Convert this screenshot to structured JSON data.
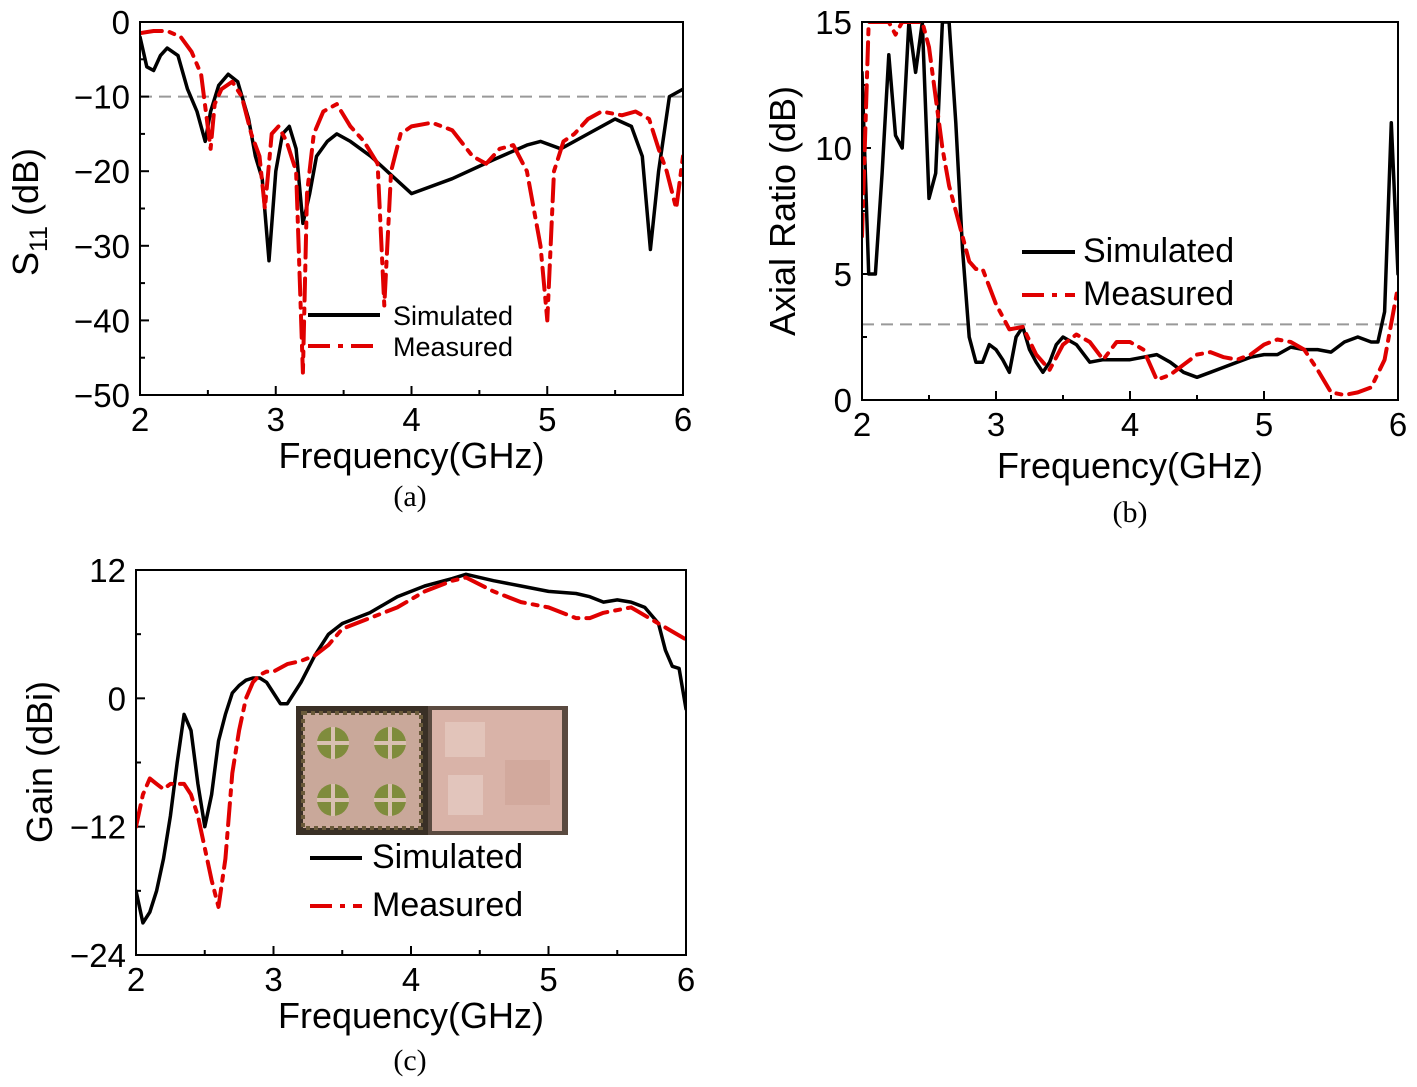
{
  "chart_data": [
    {
      "panel_label": "(a)",
      "type": "line",
      "xlabel": "Frequency(GHz)",
      "ylabel": "S11 (dB)",
      "ylabel_main": "S",
      "ylabel_sub": "11",
      "ylabel_unit": " (dB)",
      "xlim": [
        2,
        6
      ],
      "ylim": [
        -50,
        0
      ],
      "xticks": [
        2,
        3,
        4,
        5,
        6
      ],
      "yticks": [
        0,
        -10,
        -20,
        -30,
        -40,
        -50
      ],
      "xtick_labels": [
        "2",
        "3",
        "4",
        "5",
        "6"
      ],
      "ytick_labels": [
        "0",
        "−10",
        "−20",
        "−30",
        "−40",
        "−50"
      ],
      "reference_line": {
        "y": -10,
        "style": "dashed",
        "color": "#999999"
      },
      "legend_position": "bottom-center",
      "series": [
        {
          "name": "Simulated",
          "color": "#000000",
          "style": "solid",
          "x": [
            2.0,
            2.05,
            2.1,
            2.15,
            2.2,
            2.28,
            2.35,
            2.42,
            2.48,
            2.52,
            2.58,
            2.65,
            2.72,
            2.8,
            2.85,
            2.9,
            2.95,
            3.0,
            3.05,
            3.1,
            3.15,
            3.2,
            3.25,
            3.3,
            3.38,
            3.45,
            3.55,
            3.7,
            3.85,
            4.0,
            4.3,
            4.6,
            4.85,
            4.95,
            5.1,
            5.3,
            5.5,
            5.62,
            5.7,
            5.76,
            5.82,
            5.9,
            6.0
          ],
          "y": [
            -2,
            -6,
            -6.5,
            -4.5,
            -3.5,
            -4.5,
            -9,
            -12,
            -16,
            -12,
            -8.5,
            -7,
            -8,
            -13,
            -18,
            -21,
            -32,
            -20,
            -15,
            -14,
            -17,
            -27,
            -23,
            -18,
            -16,
            -15,
            -16,
            -18,
            -20.5,
            -23,
            -21,
            -18.5,
            -16.5,
            -16,
            -17,
            -15,
            -13,
            -14,
            -18,
            -30.5,
            -20,
            -10,
            -9
          ]
        },
        {
          "name": "Measured",
          "color": "#e00000",
          "style": "dashdot",
          "x": [
            2.0,
            2.1,
            2.2,
            2.3,
            2.38,
            2.45,
            2.52,
            2.55,
            2.6,
            2.68,
            2.75,
            2.82,
            2.88,
            2.92,
            2.97,
            3.02,
            3.08,
            3.15,
            3.2,
            3.23,
            3.28,
            3.35,
            3.45,
            3.55,
            3.65,
            3.75,
            3.8,
            3.85,
            3.92,
            4.0,
            4.15,
            4.3,
            4.45,
            4.55,
            4.65,
            4.75,
            4.85,
            4.95,
            5.0,
            5.05,
            5.12,
            5.2,
            5.3,
            5.4,
            5.55,
            5.65,
            5.75,
            5.82,
            5.88,
            5.95,
            6.0
          ],
          "y": [
            -1.5,
            -1.2,
            -1.2,
            -2,
            -4,
            -7,
            -17,
            -11,
            -9,
            -8,
            -10,
            -15,
            -18,
            -25,
            -15,
            -14,
            -16,
            -20,
            -47,
            -23,
            -15,
            -12,
            -11,
            -14,
            -16,
            -19,
            -38,
            -20,
            -15,
            -14,
            -13.5,
            -14.5,
            -18,
            -19,
            -17,
            -16.5,
            -20,
            -30,
            -40,
            -20,
            -16,
            -15,
            -13,
            -12,
            -12.5,
            -12,
            -13,
            -17,
            -20,
            -25,
            -18
          ]
        }
      ]
    },
    {
      "panel_label": "(b)",
      "type": "line",
      "xlabel": "Frequency(GHz)",
      "ylabel": "Axial Ratio (dB)",
      "xlim": [
        2,
        6
      ],
      "ylim": [
        0,
        15
      ],
      "xticks": [
        2,
        3,
        4,
        5,
        6
      ],
      "yticks": [
        0,
        5,
        10,
        15
      ],
      "xtick_labels": [
        "2",
        "3",
        "4",
        "5",
        "6"
      ],
      "ytick_labels": [
        "0",
        "5",
        "10",
        "15"
      ],
      "reference_line": {
        "y": 3,
        "style": "dashed",
        "color": "#999999"
      },
      "legend_position": "center-right",
      "series": [
        {
          "name": "Simulated",
          "color": "#000000",
          "style": "solid",
          "x": [
            2.0,
            2.05,
            2.1,
            2.15,
            2.2,
            2.25,
            2.3,
            2.35,
            2.4,
            2.45,
            2.5,
            2.55,
            2.6,
            2.65,
            2.7,
            2.75,
            2.8,
            2.85,
            2.9,
            2.95,
            3.0,
            3.05,
            3.1,
            3.15,
            3.2,
            3.25,
            3.3,
            3.35,
            3.4,
            3.45,
            3.5,
            3.6,
            3.7,
            3.8,
            3.9,
            4.0,
            4.1,
            4.2,
            4.3,
            4.4,
            4.5,
            4.6,
            4.7,
            4.8,
            4.9,
            5.0,
            5.1,
            5.2,
            5.3,
            5.4,
            5.5,
            5.6,
            5.7,
            5.8,
            5.85,
            5.9,
            5.95,
            6.0
          ],
          "y": [
            13,
            5,
            5,
            9,
            13.7,
            10.5,
            10,
            15,
            13,
            15,
            8,
            9,
            15,
            15,
            11,
            6,
            2.5,
            1.5,
            1.5,
            2.2,
            2,
            1.6,
            1.1,
            2.5,
            2.9,
            2,
            1.5,
            1.1,
            1.5,
            2.2,
            2.5,
            2.2,
            1.5,
            1.6,
            1.6,
            1.6,
            1.7,
            1.8,
            1.5,
            1.1,
            0.9,
            1.1,
            1.3,
            1.5,
            1.7,
            1.8,
            1.8,
            2.1,
            2,
            2,
            1.9,
            2.3,
            2.5,
            2.3,
            2.3,
            3.5,
            11,
            5
          ]
        },
        {
          "name": "Measured",
          "color": "#e00000",
          "style": "dashdot",
          "x": [
            2.0,
            2.05,
            2.1,
            2.15,
            2.2,
            2.25,
            2.3,
            2.35,
            2.4,
            2.45,
            2.5,
            2.55,
            2.6,
            2.65,
            2.7,
            2.75,
            2.8,
            2.85,
            2.9,
            2.95,
            3.0,
            3.1,
            3.2,
            3.3,
            3.4,
            3.5,
            3.6,
            3.7,
            3.8,
            3.9,
            4.0,
            4.1,
            4.2,
            4.3,
            4.4,
            4.5,
            4.6,
            4.7,
            4.8,
            4.9,
            5.0,
            5.1,
            5.2,
            5.3,
            5.4,
            5.5,
            5.6,
            5.7,
            5.8,
            5.9,
            6.0
          ],
          "y": [
            6.5,
            15,
            15,
            15,
            15,
            14.5,
            15,
            15,
            15,
            15,
            14,
            12,
            10,
            8.5,
            7.5,
            6.5,
            5.5,
            5.2,
            5.2,
            4.5,
            3.8,
            2.8,
            2.9,
            1.8,
            1.2,
            2.2,
            2.6,
            2.3,
            1.6,
            2.3,
            2.3,
            2.0,
            0.8,
            1.0,
            1.4,
            1.8,
            1.9,
            1.7,
            1.6,
            1.8,
            2.2,
            2.4,
            2.3,
            2.0,
            1.2,
            0.3,
            0.2,
            0.3,
            0.5,
            1.6,
            4.5
          ]
        }
      ]
    },
    {
      "panel_label": "(c)",
      "type": "line",
      "xlabel": "Frequency(GHz)",
      "ylabel": "Gain (dBi)",
      "xlim": [
        2,
        6
      ],
      "ylim": [
        -24,
        12
      ],
      "xticks": [
        2,
        3,
        4,
        5,
        6
      ],
      "yticks": [
        12,
        0,
        -12,
        -24
      ],
      "xtick_labels": [
        "2",
        "3",
        "4",
        "5",
        "6"
      ],
      "ytick_labels": [
        "12",
        "0",
        "−12",
        "−24"
      ],
      "legend_position": "bottom-center",
      "inset": "photograph of fabricated antenna (front and back)",
      "series": [
        {
          "name": "Simulated",
          "color": "#000000",
          "style": "solid",
          "x": [
            2.0,
            2.05,
            2.1,
            2.15,
            2.2,
            2.25,
            2.3,
            2.35,
            2.4,
            2.45,
            2.5,
            2.55,
            2.6,
            2.65,
            2.7,
            2.75,
            2.8,
            2.85,
            2.9,
            2.95,
            3.0,
            3.05,
            3.1,
            3.2,
            3.3,
            3.4,
            3.5,
            3.7,
            3.9,
            4.1,
            4.3,
            4.4,
            4.6,
            4.8,
            5.0,
            5.2,
            5.3,
            5.4,
            5.5,
            5.6,
            5.7,
            5.8,
            5.85,
            5.9,
            5.95,
            6.0
          ],
          "y": [
            -18,
            -21,
            -20,
            -18,
            -15,
            -11,
            -6,
            -1.5,
            -3,
            -8,
            -12,
            -9,
            -4,
            -1.5,
            0.5,
            1.2,
            1.7,
            1.9,
            1.9,
            1.5,
            0.5,
            -0.5,
            -0.5,
            1.5,
            4,
            6,
            7,
            8,
            9.5,
            10.5,
            11.2,
            11.6,
            11,
            10.5,
            10,
            9.8,
            9.5,
            9,
            9.2,
            9,
            8.5,
            7,
            4.5,
            3,
            2.8,
            -1
          ]
        },
        {
          "name": "Measured",
          "color": "#e00000",
          "style": "dashdot",
          "x": [
            2.0,
            2.05,
            2.1,
            2.15,
            2.2,
            2.25,
            2.3,
            2.35,
            2.4,
            2.45,
            2.5,
            2.55,
            2.6,
            2.65,
            2.7,
            2.75,
            2.8,
            2.85,
            2.9,
            2.95,
            3.0,
            3.1,
            3.2,
            3.3,
            3.4,
            3.5,
            3.7,
            3.9,
            4.1,
            4.3,
            4.4,
            4.6,
            4.8,
            5.0,
            5.2,
            5.3,
            5.4,
            5.6,
            5.8,
            6.0
          ],
          "y": [
            -12,
            -9,
            -7.5,
            -8,
            -8.5,
            -8,
            -8,
            -8,
            -9,
            -11,
            -14,
            -17,
            -19.5,
            -15,
            -7,
            -3,
            0,
            1.5,
            2.2,
            2.5,
            2.5,
            3.2,
            3.5,
            4,
            5,
            6.5,
            7.5,
            8.5,
            10,
            11,
            11.3,
            10,
            9,
            8.5,
            7.5,
            7.5,
            8,
            8.5,
            7,
            5.5
          ]
        }
      ]
    }
  ]
}
